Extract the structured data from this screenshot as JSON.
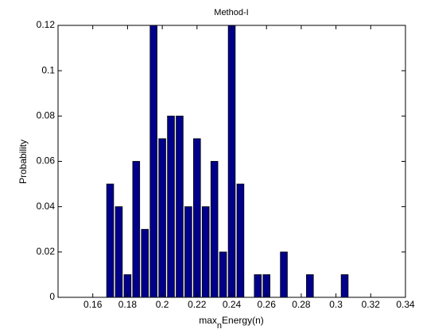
{
  "chart_data": {
    "type": "bar",
    "title": "Method-I",
    "xlabel": {
      "text": "max",
      "subscript": "n",
      "rest": "Energy(n)"
    },
    "ylabel": "Probability",
    "x": [
      0.17,
      0.175,
      0.18,
      0.185,
      0.19,
      0.195,
      0.2,
      0.205,
      0.21,
      0.215,
      0.22,
      0.225,
      0.23,
      0.235,
      0.24,
      0.245,
      0.255,
      0.26,
      0.27,
      0.285,
      0.305
    ],
    "values": [
      0.05,
      0.04,
      0.01,
      0.06,
      0.03,
      0.12,
      0.07,
      0.08,
      0.08,
      0.04,
      0.07,
      0.04,
      0.06,
      0.02,
      0.12,
      0.05,
      0.01,
      0.01,
      0.02,
      0.01,
      0.01
    ],
    "color": "#00008b",
    "xlim": [
      0.14,
      0.34
    ],
    "xticks": [
      0.16,
      0.18,
      0.2,
      0.22,
      0.24,
      0.26,
      0.28,
      0.3,
      0.32,
      0.34
    ],
    "ylim": [
      0,
      0.12
    ],
    "yticks": [
      0,
      0.02,
      0.04,
      0.06,
      0.08,
      0.1,
      0.12
    ],
    "grid": false
  }
}
